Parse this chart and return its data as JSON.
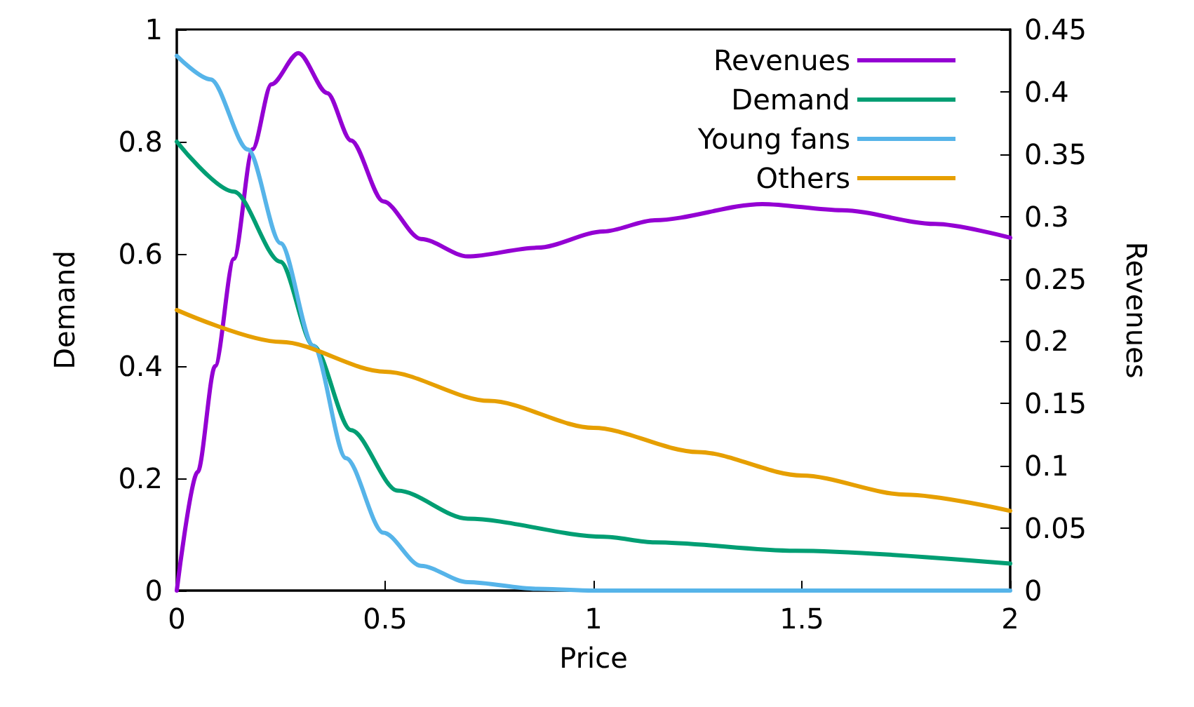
{
  "chart_data": {
    "type": "line",
    "xlabel": "Price",
    "ylabel": "Demand",
    "y2label": "Revenues",
    "xlim": [
      0,
      2
    ],
    "xticks": [
      0,
      0.5,
      1,
      1.5,
      2
    ],
    "ylim": [
      0,
      1
    ],
    "yticks": [
      0,
      0.2,
      0.4,
      0.6,
      0.8,
      1
    ],
    "y2lim": [
      0,
      0.45
    ],
    "y2ticks": [
      0,
      0.05,
      0.1,
      0.15,
      0.2,
      0.25,
      0.3,
      0.35,
      0.4,
      0.45
    ],
    "grid": false,
    "legend": "top right",
    "marker": "none",
    "line_style": "solid",
    "series": [
      {
        "name": "Revenues",
        "color": "#9400d3",
        "axis": "y2",
        "x": [
          0,
          0.05,
          0.092,
          0.137,
          0.182,
          0.227,
          0.292,
          0.361,
          0.418,
          0.496,
          0.586,
          0.698,
          0.866,
          1.024,
          1.147,
          1.405,
          1.596,
          1.82,
          2
        ],
        "values": [
          0,
          0.095,
          0.18,
          0.266,
          0.354,
          0.406,
          0.431,
          0.399,
          0.361,
          0.312,
          0.282,
          0.268,
          0.275,
          0.288,
          0.297,
          0.31,
          0.305,
          0.294,
          0.283
        ]
      },
      {
        "name": "Demand",
        "color": "#009e73",
        "x": [
          0,
          0.137,
          0.249,
          0.328,
          0.418,
          0.53,
          0.698,
          1.024,
          1.147,
          1.484,
          2
        ],
        "values": [
          0.8,
          0.711,
          0.586,
          0.436,
          0.286,
          0.178,
          0.128,
          0.096,
          0.086,
          0.071,
          0.048
        ]
      },
      {
        "name": "Young fans",
        "color": "#56b4e9",
        "x": [
          0,
          0.081,
          0.171,
          0.249,
          0.328,
          0.406,
          0.496,
          0.586,
          0.698,
          0.866,
          1,
          1.5,
          2
        ],
        "values": [
          0.953,
          0.911,
          0.786,
          0.619,
          0.436,
          0.236,
          0.103,
          0.044,
          0.015,
          0.003,
          0,
          0,
          0
        ]
      },
      {
        "name": "Others",
        "color": "#e69f00",
        "x": [
          0,
          0.25,
          0.5,
          0.75,
          1,
          1.25,
          1.5,
          1.75,
          2
        ],
        "values": [
          0.5,
          0.443,
          0.39,
          0.338,
          0.29,
          0.247,
          0.205,
          0.171,
          0.142
        ]
      }
    ]
  }
}
